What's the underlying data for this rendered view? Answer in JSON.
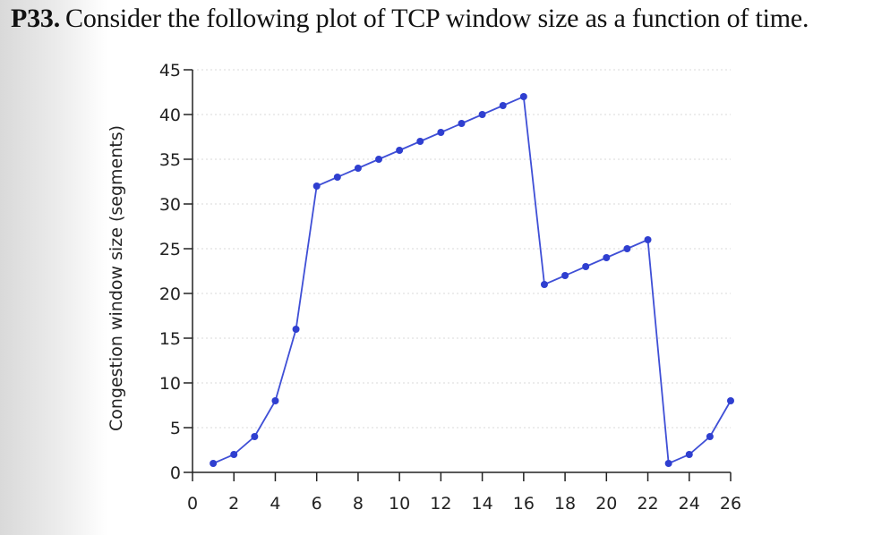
{
  "problem": {
    "number": "P33.",
    "text": "Consider the following plot of TCP window size as a function of time."
  },
  "colors": {
    "line": "#3f4fd6",
    "marker": "#2f3fd0",
    "axis": "#222222",
    "grid": "#d9d9d9"
  },
  "chart_data": {
    "type": "line",
    "ylabel": "Congestion window size (segments)",
    "xlabel": "",
    "xlim": [
      0,
      26
    ],
    "ylim": [
      0,
      45
    ],
    "x_ticks": [
      0,
      2,
      4,
      6,
      8,
      10,
      12,
      14,
      16,
      18,
      20,
      22,
      24,
      26
    ],
    "y_ticks": [
      0,
      5,
      10,
      15,
      20,
      25,
      30,
      35,
      40,
      45
    ],
    "grid": true,
    "series": [
      {
        "x": [
          1,
          2,
          3,
          4,
          5,
          6,
          7,
          8,
          9,
          10,
          11,
          12,
          13,
          14,
          15,
          16,
          17,
          18,
          19,
          20,
          21,
          22,
          23,
          24,
          25,
          26
        ],
        "values": [
          1,
          2,
          4,
          8,
          16,
          32,
          33,
          34,
          35,
          36,
          37,
          38,
          39,
          40,
          41,
          42,
          21,
          22,
          23,
          24,
          25,
          26,
          1,
          2,
          4,
          8
        ]
      }
    ]
  }
}
